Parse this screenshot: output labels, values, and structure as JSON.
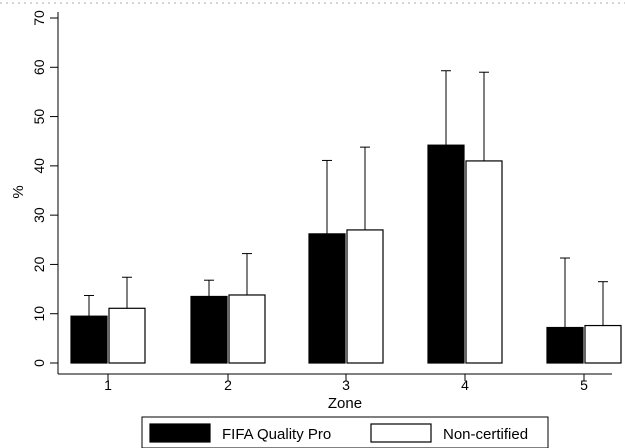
{
  "chart_data": {
    "type": "bar",
    "xlabel": "Zone",
    "ylabel": "%",
    "categories": [
      "1",
      "2",
      "3",
      "4",
      "5"
    ],
    "ylim": [
      0,
      70
    ],
    "yticks": [
      0,
      10,
      20,
      30,
      40,
      50,
      60,
      70
    ],
    "grid": false,
    "legend_position": "bottom",
    "error_bars": "upper",
    "series": [
      {
        "name": "FIFA Quality Pro",
        "color": "#000000",
        "values": [
          9.5,
          13.5,
          26.2,
          44.2,
          7.2
        ],
        "error_upper": [
          13.7,
          16.8,
          41.1,
          59.3,
          21.3
        ]
      },
      {
        "name": "Non-certified",
        "color": "#ffffff",
        "values": [
          11.1,
          13.8,
          27.0,
          41.0,
          7.6
        ],
        "error_upper": [
          17.4,
          22.2,
          43.8,
          59.0,
          16.5
        ]
      }
    ]
  }
}
